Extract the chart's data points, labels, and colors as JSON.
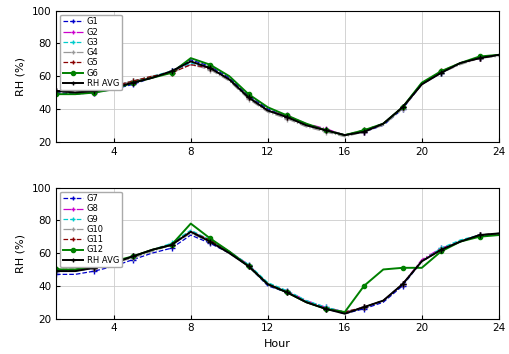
{
  "hours": [
    1,
    2,
    3,
    4,
    5,
    6,
    7,
    8,
    9,
    10,
    11,
    12,
    13,
    14,
    15,
    16,
    17,
    18,
    19,
    20,
    21,
    22,
    23,
    24
  ],
  "top": {
    "G1": [
      50,
      49,
      50,
      52,
      55,
      59,
      63,
      70,
      66,
      59,
      48,
      40,
      35,
      30,
      27,
      24,
      26,
      30,
      40,
      55,
      62,
      68,
      71,
      73
    ],
    "G2": [
      51,
      50,
      50,
      53,
      56,
      59,
      63,
      67,
      65,
      58,
      47,
      39,
      36,
      31,
      28,
      24,
      26,
      31,
      41,
      55,
      62,
      68,
      71,
      73
    ],
    "G3": [
      51,
      50,
      51,
      54,
      57,
      60,
      63,
      68,
      65,
      58,
      47,
      39,
      35,
      30,
      27,
      24,
      27,
      31,
      41,
      56,
      62,
      68,
      71,
      73
    ],
    "G4": [
      51,
      50,
      51,
      54,
      57,
      60,
      62,
      67,
      64,
      57,
      46,
      38,
      34,
      29,
      26,
      23,
      26,
      30,
      40,
      55,
      62,
      67,
      71,
      72
    ],
    "G5": [
      51,
      50,
      51,
      54,
      57,
      60,
      62,
      67,
      65,
      58,
      47,
      39,
      35,
      30,
      27,
      24,
      27,
      31,
      41,
      55,
      63,
      68,
      71,
      73
    ],
    "G6": [
      49,
      49,
      50,
      52,
      56,
      59,
      62,
      71,
      67,
      60,
      49,
      41,
      36,
      31,
      27,
      24,
      27,
      31,
      41,
      56,
      63,
      68,
      72,
      73
    ],
    "RH_AVG": [
      51,
      50,
      51,
      53,
      56,
      59,
      63,
      69,
      65,
      58,
      47,
      39,
      35,
      30,
      27,
      24,
      26,
      31,
      41,
      55,
      62,
      68,
      71,
      73
    ]
  },
  "bottom": {
    "G7": [
      47,
      47,
      49,
      52,
      56,
      60,
      63,
      71,
      66,
      60,
      52,
      40,
      36,
      30,
      26,
      23,
      26,
      30,
      40,
      55,
      62,
      67,
      71,
      71
    ],
    "G8": [
      49,
      49,
      51,
      54,
      58,
      62,
      65,
      73,
      68,
      61,
      53,
      41,
      37,
      31,
      27,
      24,
      27,
      31,
      41,
      56,
      63,
      67,
      71,
      72
    ],
    "G9": [
      49,
      49,
      51,
      54,
      58,
      62,
      66,
      74,
      68,
      61,
      53,
      42,
      37,
      31,
      27,
      24,
      27,
      31,
      41,
      55,
      63,
      68,
      71,
      72
    ],
    "G10": [
      50,
      50,
      51,
      54,
      57,
      61,
      65,
      72,
      67,
      60,
      52,
      41,
      36,
      30,
      26,
      24,
      27,
      31,
      41,
      55,
      62,
      67,
      71,
      72
    ],
    "G11": [
      50,
      50,
      51,
      54,
      58,
      62,
      65,
      73,
      68,
      61,
      52,
      41,
      36,
      30,
      26,
      24,
      27,
      31,
      41,
      55,
      62,
      67,
      71,
      72
    ],
    "G12": [
      50,
      50,
      52,
      55,
      58,
      62,
      65,
      78,
      69,
      61,
      52,
      41,
      36,
      30,
      26,
      24,
      40,
      50,
      51,
      51,
      61,
      67,
      70,
      71
    ],
    "RH_AVG": [
      49,
      49,
      51,
      54,
      58,
      62,
      65,
      73,
      67,
      60,
      52,
      41,
      36,
      30,
      26,
      23,
      27,
      31,
      41,
      55,
      62,
      67,
      71,
      72
    ]
  },
  "series_top": [
    {
      "label": "G1",
      "color": "#0000CC",
      "ls": "--",
      "marker": "+",
      "lw": 0.9
    },
    {
      "label": "G2",
      "color": "#CC00CC",
      "ls": "-.",
      "marker": "+",
      "lw": 0.9
    },
    {
      "label": "G3",
      "color": "#00CCCC",
      "ls": "--",
      "marker": "+",
      "lw": 0.9
    },
    {
      "label": "G4",
      "color": "#999999",
      "ls": "-.",
      "marker": "+",
      "lw": 0.9
    },
    {
      "label": "G5",
      "color": "#8B0000",
      "ls": "--",
      "marker": "+",
      "lw": 0.9
    },
    {
      "label": "G6",
      "color": "#008000",
      "ls": "-",
      "marker": "o",
      "lw": 1.4
    },
    {
      "label": "RH AVG",
      "color": "#000000",
      "ls": "-",
      "marker": "+",
      "lw": 1.4
    }
  ],
  "series_bottom": [
    {
      "label": "G7",
      "color": "#0000CC",
      "ls": "--",
      "marker": "+",
      "lw": 0.9
    },
    {
      "label": "G8",
      "color": "#CC00CC",
      "ls": "-.",
      "marker": "+",
      "lw": 0.9
    },
    {
      "label": "G9",
      "color": "#00CCCC",
      "ls": "--",
      "marker": "+",
      "lw": 0.9
    },
    {
      "label": "G10",
      "color": "#999999",
      "ls": "-.",
      "marker": "+",
      "lw": 0.9
    },
    {
      "label": "G11",
      "color": "#8B0000",
      "ls": "--",
      "marker": "+",
      "lw": 0.9
    },
    {
      "label": "G12",
      "color": "#008000",
      "ls": "-",
      "marker": "o",
      "lw": 1.4
    },
    {
      "label": "RH AVG",
      "color": "#000000",
      "ls": "-",
      "marker": "+",
      "lw": 1.4
    }
  ],
  "ylim": [
    20,
    100
  ],
  "xlim": [
    1,
    24
  ],
  "yticks": [
    20,
    40,
    60,
    80,
    100
  ],
  "xticks": [
    4,
    8,
    12,
    16,
    20,
    24
  ],
  "ylabel": "RH (%)",
  "xlabel": "Hour",
  "grid_color": "#cccccc",
  "bg_color": "#ffffff",
  "legend_fontsize": 6.0,
  "tick_fontsize": 7.5,
  "label_fontsize": 8
}
